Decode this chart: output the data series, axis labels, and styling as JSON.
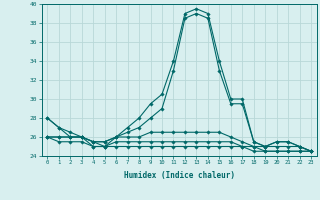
{
  "title": "",
  "xlabel": "Humidex (Indice chaleur)",
  "ylabel": "",
  "x": [
    0,
    1,
    2,
    3,
    4,
    5,
    6,
    7,
    8,
    9,
    10,
    11,
    12,
    13,
    14,
    15,
    16,
    17,
    18,
    19,
    20,
    21,
    22,
    23
  ],
  "line1": [
    28,
    27,
    26,
    26,
    25,
    25,
    26,
    27,
    28,
    29.5,
    30.5,
    34,
    39,
    39.5,
    39,
    34,
    30,
    30,
    25.5,
    25,
    25.5,
    25.5,
    25,
    24.5
  ],
  "line2": [
    28,
    27,
    26.5,
    26,
    25.5,
    25.5,
    26,
    26.5,
    27,
    28,
    29,
    33,
    38.5,
    39,
    38.5,
    33,
    29.5,
    29.5,
    25.5,
    25,
    25.5,
    25.5,
    25,
    24.5
  ],
  "line3": [
    26,
    26,
    26,
    26,
    25.5,
    25.5,
    26,
    26,
    26,
    26.5,
    26.5,
    26.5,
    26.5,
    26.5,
    26.5,
    26.5,
    26,
    25.5,
    25,
    25,
    25,
    25,
    25,
    24.5
  ],
  "line4": [
    26,
    26,
    26,
    26,
    25.5,
    25,
    25.5,
    25.5,
    25.5,
    25.5,
    25.5,
    25.5,
    25.5,
    25.5,
    25.5,
    25.5,
    25.5,
    25,
    25,
    24.5,
    24.5,
    24.5,
    24.5,
    24.5
  ],
  "line5": [
    26,
    25.5,
    25.5,
    25.5,
    25,
    25,
    25,
    25,
    25,
    25,
    25,
    25,
    25,
    25,
    25,
    25,
    25,
    25,
    24.5,
    24.5,
    24.5,
    24.5,
    24.5,
    24.5
  ],
  "bg_color": "#d8efef",
  "grid_color": "#b8d8d8",
  "line_color": "#006868",
  "ylim": [
    24,
    40
  ],
  "yticks": [
    24,
    26,
    28,
    30,
    32,
    34,
    36,
    38,
    40
  ],
  "xticks": [
    0,
    1,
    2,
    3,
    4,
    5,
    6,
    7,
    8,
    9,
    10,
    11,
    12,
    13,
    14,
    15,
    16,
    17,
    18,
    19,
    20,
    21,
    22,
    23
  ],
  "marker": "D",
  "markersize": 1.8,
  "linewidth": 0.8
}
